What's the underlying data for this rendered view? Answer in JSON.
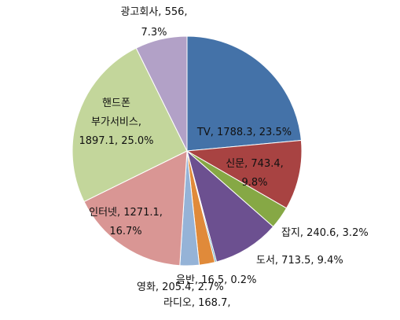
{
  "chart_data": {
    "type": "pie",
    "title": "",
    "legend": "none",
    "slices": [
      {
        "name": "TV",
        "value": 1788.3,
        "percent": 23.5,
        "color": "#4472a8",
        "label_lines": [
          "TV, 1788.3, 23.5%"
        ]
      },
      {
        "name": "신문",
        "value": 743.4,
        "percent": 9.8,
        "color": "#a84342",
        "label_lines": [
          "신문, 743.4,",
          "9.8%"
        ]
      },
      {
        "name": "잡지",
        "value": 240.6,
        "percent": 3.2,
        "color": "#86a845",
        "label_lines": [
          "잡지, 240.6, 3.2%"
        ]
      },
      {
        "name": "도서",
        "value": 713.5,
        "percent": 9.4,
        "color": "#6c5090",
        "label_lines": [
          "도서, 713.5, 9.4%"
        ]
      },
      {
        "name": "음반",
        "value": 16.5,
        "percent": 0.2,
        "color": "#4aa0b8",
        "label_lines": [
          "음반, 16.5, 0.2%"
        ]
      },
      {
        "name": "라디오",
        "value": 168.7,
        "percent": 2.2,
        "color": "#e08a3a",
        "label_lines": [
          "라디오, 168.7,"
        ]
      },
      {
        "name": "영화",
        "value": 205.4,
        "percent": 2.7,
        "color": "#95b3d7",
        "label_lines": [
          "영화, 205.4, 2.7%"
        ]
      },
      {
        "name": "인터넷",
        "value": 1271.1,
        "percent": 16.7,
        "color": "#d99694",
        "label_lines": [
          "인터넷, 1271.1,",
          "16.7%"
        ]
      },
      {
        "name": "핸드폰 부가서비스",
        "value": 1897.1,
        "percent": 25.0,
        "color": "#c3d69b",
        "label_lines": [
          "핸드폰",
          "부가서비스,",
          "1897.1, 25.0%"
        ]
      },
      {
        "name": "광고회사",
        "value": 556,
        "percent": 7.3,
        "color": "#b2a1c7",
        "label_lines": [
          "광고회사, 556,",
          "7.3%"
        ]
      }
    ]
  }
}
